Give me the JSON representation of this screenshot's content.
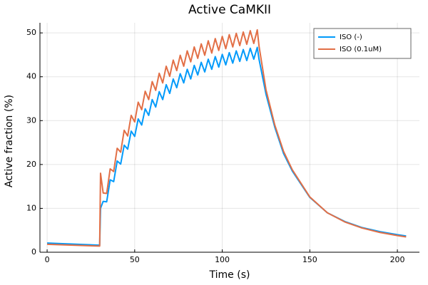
{
  "chart_data": {
    "type": "line",
    "title": "Active CaMKII",
    "x_label": "Time (s)",
    "y_label": "Active fraction (%)",
    "xlim": [
      -4.1,
      212.6
    ],
    "ylim": [
      0,
      52.3
    ],
    "xticks": [
      0,
      50,
      100,
      150,
      200
    ],
    "yticks": [
      0,
      10,
      20,
      30,
      40,
      50
    ],
    "grid": true,
    "legend": "top-right",
    "x": [
      0,
      30,
      30.5,
      32,
      34,
      36,
      38,
      40,
      42,
      44,
      46,
      48,
      50,
      52,
      54,
      56,
      58,
      60,
      62,
      64,
      66,
      68,
      70,
      72,
      74,
      76,
      78,
      80,
      82,
      84,
      86,
      88,
      90,
      92,
      94,
      96,
      98,
      100,
      102,
      104,
      106,
      108,
      110,
      112,
      114,
      116,
      118,
      120,
      121,
      125,
      130,
      135,
      140,
      150,
      160,
      170,
      180,
      190,
      200,
      205
    ],
    "series": [
      {
        "name": "ISO (-)",
        "color": "#009afa",
        "values": [
          2.1,
          1.6,
          10,
          11.6,
          11.5,
          16.5,
          16.1,
          20.8,
          20.1,
          24.4,
          23.5,
          27.6,
          26.4,
          30.4,
          29.0,
          32.7,
          31.2,
          34.8,
          33.1,
          36.6,
          34.8,
          38.2,
          36.2,
          39.5,
          37.5,
          40.7,
          38.6,
          41.7,
          39.5,
          42.6,
          40.4,
          43.3,
          41.1,
          44.0,
          41.7,
          44.6,
          42.2,
          45.1,
          42.7,
          45.5,
          43.1,
          45.9,
          43.5,
          46.2,
          43.7,
          46.5,
          44.0,
          46.7,
          44,
          36,
          28.5,
          22.5,
          18.5,
          12.5,
          9,
          7,
          5.6,
          4.7,
          4.0,
          3.7
        ]
      },
      {
        "name": "ISO (0.1uM)",
        "color": "#e26f46",
        "values": [
          1.8,
          1.4,
          18,
          13.5,
          13.4,
          19.0,
          18.4,
          23.7,
          22.8,
          27.8,
          26.5,
          31.2,
          29.7,
          34.2,
          32.5,
          36.7,
          34.8,
          38.9,
          36.9,
          40.8,
          38.6,
          42.4,
          40.1,
          43.8,
          41.4,
          44.9,
          42.4,
          45.9,
          43.4,
          46.8,
          44.2,
          47.5,
          44.9,
          48.2,
          45.4,
          48.7,
          46.0,
          49.2,
          46.4,
          49.6,
          46.8,
          49.9,
          47.1,
          50.2,
          47.4,
          50.5,
          47.6,
          50.7,
          47,
          37,
          29,
          23,
          18.8,
          12.6,
          9,
          6.9,
          5.5,
          4.5,
          3.8,
          3.5
        ]
      }
    ]
  }
}
